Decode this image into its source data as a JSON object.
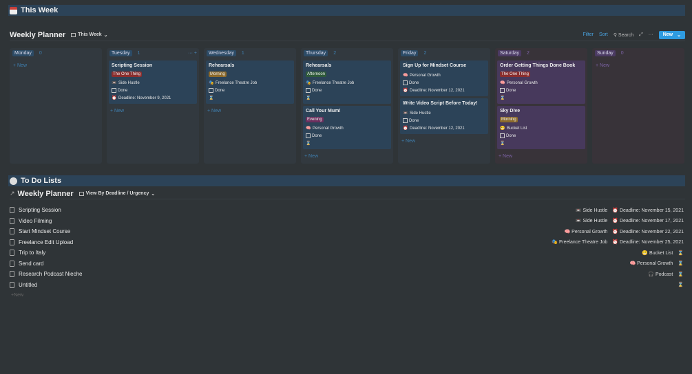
{
  "section1": {
    "title": "This Week",
    "icon": "calendar-icon"
  },
  "board": {
    "title": "Weekly Planner",
    "view": "This Week",
    "filter": "Filter",
    "sort": "Sort",
    "search": "Search",
    "new": "New",
    "add_new": "New",
    "columns": [
      {
        "day": "Monday",
        "count": "0",
        "theme": "blue",
        "cards": []
      },
      {
        "day": "Tuesday",
        "count": "1",
        "theme": "blue",
        "cards": [
          {
            "title": "Scripting Session",
            "tag": "The One Thing",
            "tag_color": "#8a2e2e",
            "project_icon": "📼",
            "project": "Side Hustle",
            "done": "Done",
            "deadline": "Deadline: November 9, 2021"
          }
        ]
      },
      {
        "day": "Wednesday",
        "count": "1",
        "theme": "blue",
        "cards": [
          {
            "title": "Rehearsals",
            "tag": "Morning",
            "tag_color": "#8c6a2c",
            "project_icon": "🎭",
            "project": "Freelance Theatre Job",
            "done": "Done"
          }
        ]
      },
      {
        "day": "Thursday",
        "count": "2",
        "theme": "blue",
        "cards": [
          {
            "title": "Rehearsals",
            "tag": "Afternoon",
            "tag_color": "#2f5a3b",
            "project_icon": "🎭",
            "project": "Freelance Theatre Job",
            "done": "Done"
          },
          {
            "title": "Call Your Mum!",
            "tag": "Evening",
            "tag_color": "#6c2f5e",
            "project_icon": "🧠",
            "project": "Personal Growth",
            "done": "Done"
          }
        ]
      },
      {
        "day": "Friday",
        "count": "2",
        "theme": "blue",
        "cards": [
          {
            "title": "Sign Up for Mindset Course",
            "project_icon": "🧠",
            "project": "Personal Growth",
            "done": "Done",
            "deadline": "Deadline: November 12, 2021"
          },
          {
            "title": "Write Video Script Before Today!",
            "project_icon": "📼",
            "project": "Side Hustle",
            "done": "Done",
            "deadline": "Deadline: November 12, 2021"
          }
        ]
      },
      {
        "day": "Saturday",
        "count": "2",
        "theme": "purple",
        "cards": [
          {
            "title": "Order Getting Things Done Book",
            "tag": "The One Thing",
            "tag_color": "#8a2e2e",
            "project_icon": "🧠",
            "project": "Personal Growth",
            "done": "Done"
          },
          {
            "title": "Sky Dive",
            "tag": "Morning",
            "tag_color": "#8c6a2c",
            "project_icon": "😬",
            "project": "Bucket List",
            "done": "Done"
          }
        ]
      },
      {
        "day": "Sunday",
        "count": "0",
        "theme": "purple",
        "cards": []
      }
    ]
  },
  "section2": {
    "title": "To Do Lists",
    "icon": "clock-icon"
  },
  "list": {
    "title": "Weekly Planner",
    "view": "View By Deadline / Urgency",
    "add_new": "New",
    "rows": [
      {
        "name": "Scripting Session",
        "project_icon": "📼",
        "project": "Side Hustle",
        "deadline": "Deadline: November 15, 2021"
      },
      {
        "name": "Video Filming",
        "project_icon": "📼",
        "project": "Side Hustle",
        "deadline": "Deadline: November 17, 2021"
      },
      {
        "name": "Start Mindset Course",
        "project_icon": "🧠",
        "project": "Personal Growth",
        "deadline": "Deadline: November 22, 2021"
      },
      {
        "name": "Freelance Edit Upload",
        "project_icon": "🎭",
        "project": "Freelance Theatre Job",
        "deadline": "Deadline: November 25, 2021"
      },
      {
        "name": "Trip to Italy",
        "project_icon": "😬",
        "project": "Bucket List"
      },
      {
        "name": "Send card",
        "project_icon": "🧠",
        "project": "Personal Growth"
      },
      {
        "name": "Research Podcast Nieche",
        "project_icon": "🎧",
        "project": "Podcast"
      },
      {
        "name": "Untitled"
      }
    ]
  }
}
